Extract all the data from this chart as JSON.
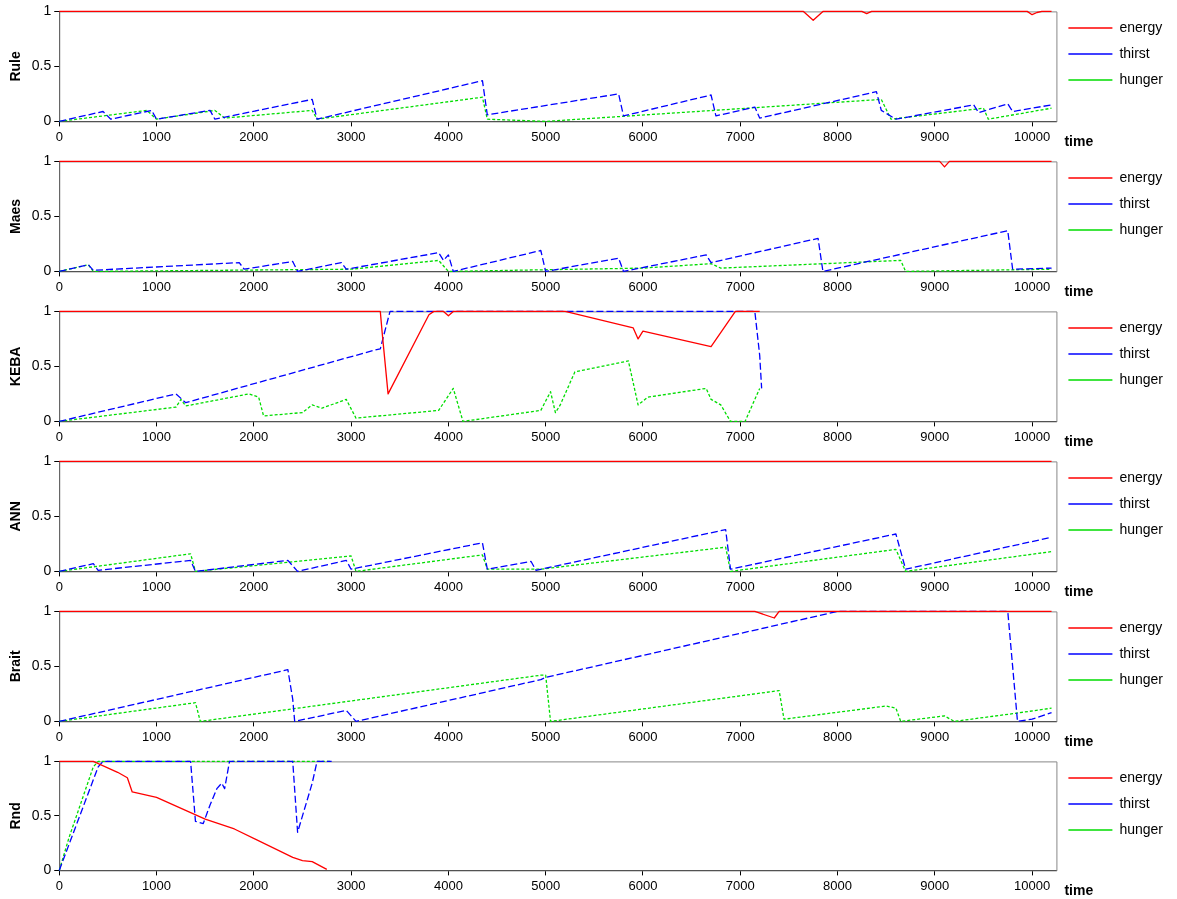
{
  "chart_data": [
    {
      "type": "line",
      "ylabel": "Rule",
      "xlabel": "time",
      "xlim": [
        0,
        10250
      ],
      "xticks": [
        0,
        1000,
        2000,
        3000,
        4000,
        5000,
        6000,
        7000,
        8000,
        9000,
        10000
      ],
      "ylim": [
        0,
        1
      ],
      "yticks": [
        0,
        0.5,
        1
      ],
      "legend": "right",
      "marker": "none",
      "series": [
        {
          "name": "energy",
          "color": "#ff0000",
          "line_style": "solid",
          "x": [
            0,
            7650,
            7750,
            7850,
            8250,
            8300,
            8350,
            9950,
            10000,
            10050,
            10100,
            10200
          ],
          "values": [
            1,
            1,
            0.92,
            1,
            1,
            0.98,
            1,
            1,
            0.97,
            0.99,
            1,
            1
          ]
        },
        {
          "name": "thirst",
          "color": "#0000ff",
          "line_style": "dashed",
          "x": [
            0,
            450,
            530,
            950,
            1000,
            1550,
            1600,
            2600,
            2650,
            4350,
            4400,
            5750,
            5800,
            6700,
            6750,
            7150,
            7200,
            8400,
            8450,
            8600,
            9400,
            9450,
            9750,
            9800,
            10200
          ],
          "values": [
            0,
            0.09,
            0.02,
            0.1,
            0.02,
            0.1,
            0.02,
            0.2,
            0.02,
            0.37,
            0.06,
            0.25,
            0.05,
            0.24,
            0.05,
            0.13,
            0.03,
            0.27,
            0.1,
            0.02,
            0.15,
            0.08,
            0.16,
            0.09,
            0.15
          ]
        },
        {
          "name": "hunger",
          "color": "#00dd00",
          "line_style": "dotted",
          "x": [
            0,
            900,
            1000,
            1600,
            1700,
            2600,
            2650,
            4350,
            4400,
            5000,
            8450,
            8550,
            9500,
            9550,
            10200
          ],
          "values": [
            0,
            0.1,
            0.02,
            0.1,
            0.03,
            0.1,
            0.02,
            0.22,
            0.02,
            0,
            0.2,
            0.02,
            0.12,
            0.02,
            0.12
          ]
        }
      ]
    },
    {
      "type": "line",
      "ylabel": "Maes",
      "xlabel": "time",
      "xlim": [
        0,
        10250
      ],
      "xticks": [
        0,
        1000,
        2000,
        3000,
        4000,
        5000,
        6000,
        7000,
        8000,
        9000,
        10000
      ],
      "ylim": [
        0,
        1
      ],
      "yticks": [
        0,
        0.5,
        1
      ],
      "legend": "right",
      "marker": "none",
      "series": [
        {
          "name": "energy",
          "color": "#ff0000",
          "line_style": "solid",
          "x": [
            0,
            9050,
            9100,
            9150,
            10200
          ],
          "values": [
            1,
            1,
            0.95,
            1,
            1
          ]
        },
        {
          "name": "thirst",
          "color": "#0000ff",
          "line_style": "dashed",
          "x": [
            0,
            300,
            350,
            1850,
            1900,
            2400,
            2450,
            2900,
            2950,
            3900,
            3950,
            4000,
            4050,
            4950,
            5000,
            5750,
            5800,
            6650,
            6700,
            7800,
            7850,
            9750,
            9800,
            10200
          ],
          "values": [
            0,
            0.06,
            0.01,
            0.08,
            0.02,
            0.09,
            0,
            0.08,
            0.02,
            0.17,
            0.1,
            0.15,
            0,
            0.19,
            0,
            0.12,
            0,
            0.15,
            0.08,
            0.3,
            0,
            0.37,
            0.02,
            0.03
          ]
        },
        {
          "name": "hunger",
          "color": "#00dd00",
          "line_style": "dotted",
          "x": [
            0,
            300,
            350,
            3000,
            3900,
            4000,
            6000,
            6700,
            6800,
            8650,
            8700,
            10200
          ],
          "values": [
            0,
            0.06,
            0,
            0.02,
            0.1,
            0,
            0.03,
            0.07,
            0.03,
            0.1,
            0,
            0.02
          ]
        }
      ]
    },
    {
      "type": "line",
      "ylabel": "KEBA",
      "xlabel": "time",
      "xlim": [
        0,
        10250
      ],
      "xticks": [
        0,
        1000,
        2000,
        3000,
        4000,
        5000,
        6000,
        7000,
        8000,
        9000,
        10000
      ],
      "ylim": [
        0,
        1
      ],
      "yticks": [
        0,
        0.5,
        1
      ],
      "legend": "right",
      "marker": "none",
      "series": [
        {
          "name": "energy",
          "color": "#ff0000",
          "line_style": "solid",
          "x": [
            0,
            3300,
            3320,
            3380,
            3800,
            3850,
            3950,
            4000,
            4050,
            5200,
            5900,
            5950,
            6000,
            6700,
            6950,
            7200
          ],
          "values": [
            1,
            1,
            0.8,
            0.25,
            0.97,
            1,
            1,
            0.96,
            1,
            1,
            0.85,
            0.75,
            0.82,
            0.68,
            1,
            1
          ]
        },
        {
          "name": "thirst",
          "color": "#0000ff",
          "line_style": "dashed",
          "x": [
            0,
            1200,
            1300,
            3250,
            3300,
            3400,
            7150,
            7200,
            7220
          ],
          "values": [
            0,
            0.25,
            0.17,
            0.65,
            0.66,
            1,
            1,
            0.6,
            0.3
          ]
        },
        {
          "name": "hunger",
          "color": "#00dd00",
          "line_style": "dotted",
          "x": [
            0,
            1200,
            1250,
            1300,
            1950,
            2050,
            2100,
            2500,
            2600,
            2700,
            2950,
            3050,
            3900,
            4050,
            4150,
            4950,
            5050,
            5100,
            5150,
            5300,
            5850,
            5950,
            6050,
            6650,
            6700,
            6800,
            6900,
            7050,
            7200
          ],
          "values": [
            0,
            0.13,
            0.2,
            0.14,
            0.25,
            0.22,
            0.05,
            0.08,
            0.15,
            0.12,
            0.2,
            0.03,
            0.1,
            0.3,
            0,
            0.1,
            0.27,
            0.08,
            0.15,
            0.45,
            0.55,
            0.15,
            0.22,
            0.3,
            0.2,
            0.15,
            0,
            0,
            0.3
          ]
        }
      ]
    },
    {
      "type": "line",
      "ylabel": "ANN",
      "xlabel": "time",
      "xlim": [
        0,
        10250
      ],
      "xticks": [
        0,
        1000,
        2000,
        3000,
        4000,
        5000,
        6000,
        7000,
        8000,
        9000,
        10000
      ],
      "ylim": [
        0,
        1
      ],
      "yticks": [
        0,
        0.5,
        1
      ],
      "legend": "right",
      "marker": "none",
      "series": [
        {
          "name": "energy",
          "color": "#ff0000",
          "line_style": "solid",
          "x": [
            0,
            10200
          ],
          "values": [
            1,
            1
          ]
        },
        {
          "name": "thirst",
          "color": "#0000ff",
          "line_style": "dashed",
          "x": [
            0,
            350,
            400,
            1350,
            1400,
            2350,
            2450,
            2950,
            3000,
            4350,
            4400,
            4850,
            4900,
            6850,
            6900,
            8600,
            8700,
            10200
          ],
          "values": [
            0,
            0.07,
            0.01,
            0.1,
            0,
            0.1,
            0,
            0.1,
            0.02,
            0.26,
            0.02,
            0.09,
            0.01,
            0.38,
            0.02,
            0.34,
            0.02,
            0.31
          ]
        },
        {
          "name": "hunger",
          "color": "#00dd00",
          "line_style": "dotted",
          "x": [
            0,
            1350,
            1400,
            3000,
            3050,
            4350,
            4400,
            4950,
            6850,
            6900,
            8600,
            8700,
            10200
          ],
          "values": [
            0,
            0.16,
            0,
            0.14,
            0,
            0.15,
            0.02,
            0.02,
            0.22,
            0,
            0.2,
            0,
            0.18
          ]
        }
      ]
    },
    {
      "type": "line",
      "ylabel": "Brait",
      "xlabel": "time",
      "xlim": [
        0,
        10250
      ],
      "xticks": [
        0,
        1000,
        2000,
        3000,
        4000,
        5000,
        6000,
        7000,
        8000,
        9000,
        10000
      ],
      "ylim": [
        0,
        1
      ],
      "yticks": [
        0,
        0.5,
        1
      ],
      "legend": "right",
      "marker": "none",
      "series": [
        {
          "name": "energy",
          "color": "#ff0000",
          "line_style": "solid",
          "x": [
            0,
            7150,
            7350,
            7400,
            10200
          ],
          "values": [
            1,
            1,
            0.94,
            1,
            1
          ]
        },
        {
          "name": "thirst",
          "color": "#0000ff",
          "line_style": "dashed",
          "x": [
            0,
            2350,
            2400,
            2420,
            2950,
            3050,
            4950,
            5000,
            8000,
            9750,
            9800,
            9850,
            10000,
            10200
          ],
          "values": [
            0,
            0.47,
            0.2,
            0,
            0.1,
            0,
            0.38,
            0.4,
            1,
            1,
            0.5,
            0,
            0.02,
            0.08
          ]
        },
        {
          "name": "hunger",
          "color": "#00dd00",
          "line_style": "dotted",
          "x": [
            0,
            1400,
            1450,
            4950,
            5000,
            5050,
            7400,
            7450,
            8500,
            8600,
            8650,
            9100,
            9200,
            9800,
            10200
          ],
          "values": [
            0,
            0.17,
            0,
            0.42,
            0.42,
            0,
            0.28,
            0.02,
            0.14,
            0.12,
            0,
            0.05,
            0,
            0.07,
            0.12
          ]
        }
      ]
    },
    {
      "type": "line",
      "ylabel": "Rnd",
      "xlabel": "time",
      "xlim": [
        0,
        10250
      ],
      "xticks": [
        0,
        1000,
        2000,
        3000,
        4000,
        5000,
        6000,
        7000,
        8000,
        9000,
        10000
      ],
      "ylim": [
        0,
        1
      ],
      "yticks": [
        0,
        0.5,
        1
      ],
      "legend": "right",
      "marker": "none",
      "series": [
        {
          "name": "energy",
          "color": "#ff0000",
          "line_style": "solid",
          "x": [
            0,
            350,
            600,
            700,
            750,
            1000,
            1500,
            1800,
            2400,
            2500,
            2600,
            2750
          ],
          "values": [
            1,
            1,
            0.9,
            0.85,
            0.72,
            0.67,
            0.47,
            0.38,
            0.12,
            0.09,
            0.08,
            0.01
          ]
        },
        {
          "name": "thirst",
          "color": "#0000ff",
          "line_style": "dashed",
          "x": [
            0,
            400,
            450,
            1350,
            1400,
            1480,
            1550,
            1620,
            1670,
            1700,
            1750,
            2400,
            2450,
            2600,
            2650,
            2800
          ],
          "values": [
            0,
            0.95,
            1,
            1,
            0.45,
            0.43,
            0.6,
            0.75,
            0.8,
            0.75,
            1,
            1,
            0.35,
            0.8,
            1,
            1
          ]
        },
        {
          "name": "hunger",
          "color": "#00dd00",
          "line_style": "dotted",
          "x": [
            0,
            100,
            350,
            400,
            2800
          ],
          "values": [
            0,
            0.3,
            0.95,
            1,
            1
          ]
        }
      ]
    }
  ]
}
